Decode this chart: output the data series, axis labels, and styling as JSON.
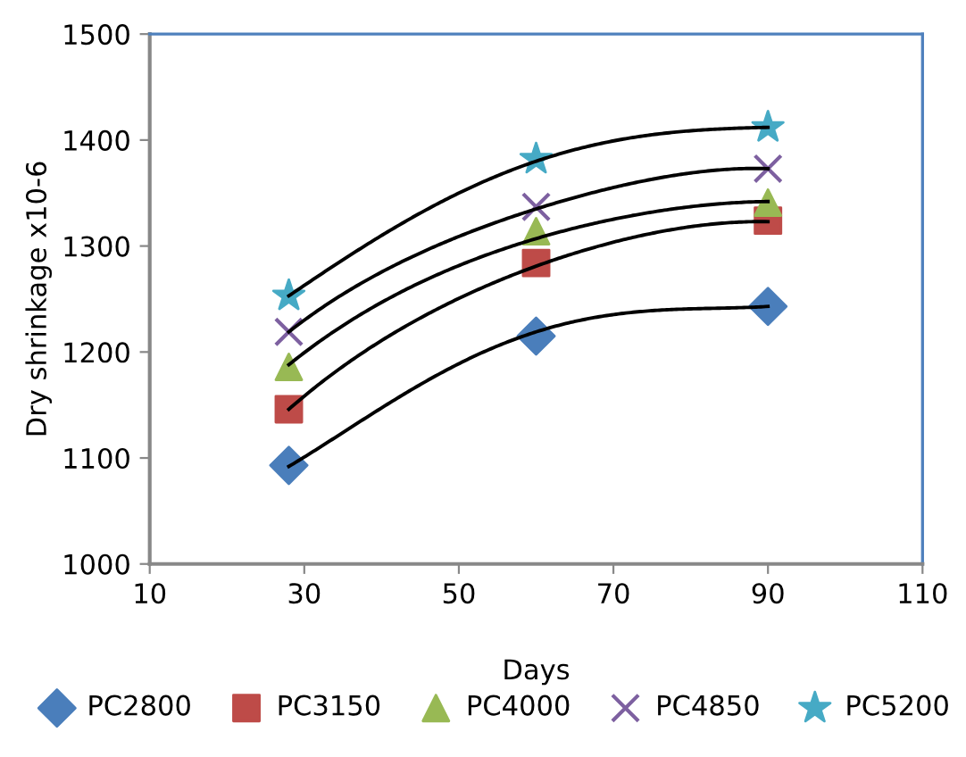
{
  "chart_data": {
    "type": "scatter",
    "xlabel": "Days",
    "ylabel": "Dry shrinkage x10-6",
    "xlim": [
      10,
      110
    ],
    "xticks": [
      10,
      30,
      50,
      70,
      90,
      110
    ],
    "ylim": [
      1000,
      1500
    ],
    "yticks": [
      1000,
      1100,
      1200,
      1300,
      1400,
      1500
    ],
    "grid": false,
    "legend": "bottom",
    "series": [
      {
        "name": "PC2800",
        "marker": "diamond",
        "color": "#4a7ebb",
        "x": [
          28,
          60,
          90
        ],
        "values": [
          1093,
          1215,
          1243
        ]
      },
      {
        "name": "PC3150",
        "marker": "square",
        "color": "#be4b48",
        "x": [
          28,
          60,
          90
        ],
        "values": [
          1146,
          1284,
          1324
        ]
      },
      {
        "name": "PC4000",
        "marker": "triangle",
        "color": "#98b954",
        "x": [
          28,
          60,
          90
        ],
        "values": [
          1186,
          1314,
          1341
        ]
      },
      {
        "name": "PC4850",
        "marker": "cross",
        "color": "#7d60a0",
        "x": [
          28,
          60,
          90
        ],
        "values": [
          1219,
          1337,
          1373
        ]
      },
      {
        "name": "PC5200",
        "marker": "star",
        "color": "#46aac5",
        "x": [
          28,
          60,
          90
        ],
        "values": [
          1253,
          1382,
          1412
        ]
      },
      {
        "type": "line",
        "color": "#000000",
        "line_style": "solid",
        "x": [
          28,
          44,
          60,
          75,
          90
        ],
        "values": [
          1092,
          1165,
          1219,
          1239,
          1243
        ]
      },
      {
        "type": "line",
        "color": "#000000",
        "line_style": "solid",
        "x": [
          28,
          44,
          60,
          75,
          90
        ],
        "values": [
          1146,
          1228,
          1281,
          1312,
          1323
        ]
      },
      {
        "type": "line",
        "color": "#000000",
        "line_style": "solid",
        "x": [
          28,
          44,
          60,
          75,
          90
        ],
        "values": [
          1188,
          1262,
          1307,
          1332,
          1342
        ]
      },
      {
        "type": "line",
        "color": "#000000",
        "line_style": "solid",
        "x": [
          28,
          44,
          60,
          75,
          90
        ],
        "values": [
          1219,
          1290,
          1335,
          1363,
          1373
        ]
      },
      {
        "type": "line",
        "color": "#000000",
        "line_style": "solid",
        "x": [
          28,
          44,
          60,
          75,
          90
        ],
        "values": [
          1253,
          1327,
          1380,
          1405,
          1412
        ]
      }
    ]
  }
}
